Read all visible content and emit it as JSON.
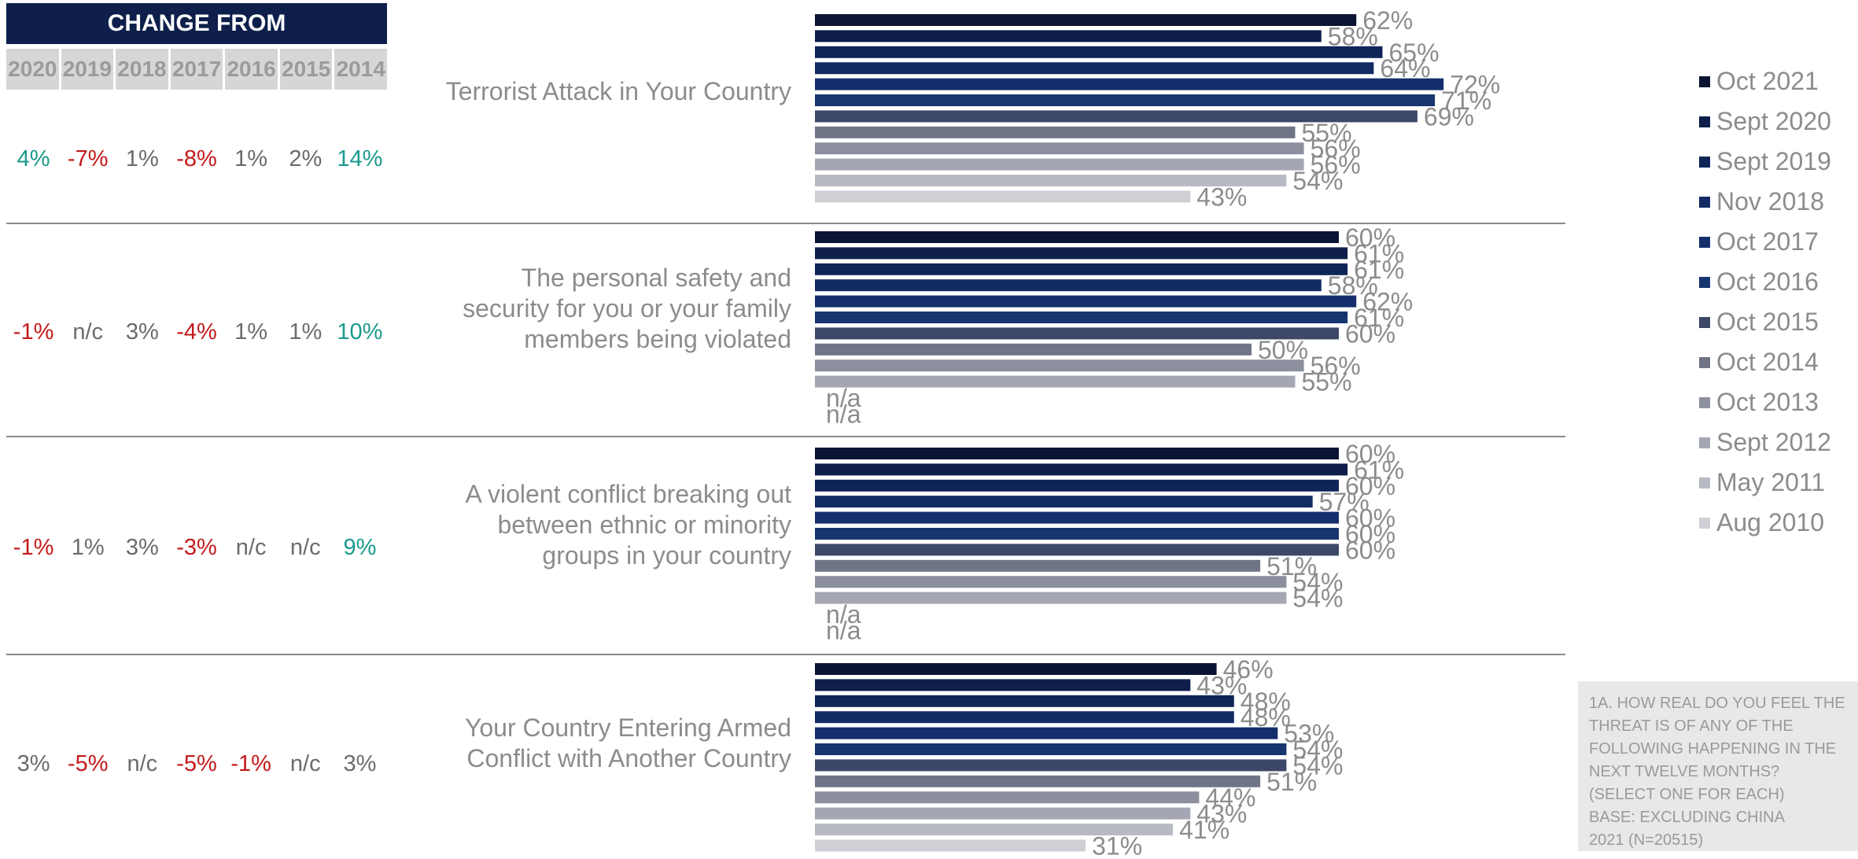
{
  "change_table": {
    "header": "CHANGE FROM",
    "years": [
      "2020",
      "2019",
      "2018",
      "2017",
      "2016",
      "2015",
      "2014"
    ],
    "rows": [
      [
        "4%",
        "-7%",
        "1%",
        "-8%",
        "1%",
        "2%",
        "14%"
      ],
      [
        "-1%",
        "n/c",
        "3%",
        "-4%",
        "1%",
        "1%",
        "10%"
      ],
      [
        "-1%",
        "1%",
        "3%",
        "-3%",
        "n/c",
        "n/c",
        "9%"
      ],
      [
        "3%",
        "-5%",
        "n/c",
        "-5%",
        "-1%",
        "n/c",
        "3%"
      ]
    ]
  },
  "colors": {
    "positive": "#1a9a8c",
    "negative": "#c41a1a",
    "series": [
      "#0b1433",
      "#0d1f4a",
      "#0f2558",
      "#122b63",
      "#142f6c",
      "#17356f",
      "#3d4768",
      "#6f7487",
      "#8c909e",
      "#a4a7b3",
      "#b8bac3",
      "#cfd0d6"
    ]
  },
  "legend": [
    "Oct 2021",
    "Sept 2020",
    "Sept 2019",
    "Nov 2018",
    "Oct 2017",
    "Oct 2016",
    "Oct 2015",
    "Oct 2014",
    "Oct 2013",
    "Sept 2012",
    "May 2011",
    "Aug 2010"
  ],
  "chart_data": {
    "type": "bar",
    "orientation": "horizontal",
    "categories": [
      "Terrorist Attack in Your Country",
      "The personal safety and security for you or your family members being violated",
      "A violent conflict breaking out between ethnic or minority groups in your country",
      "Your Country Entering Armed Conflict with Another Country"
    ],
    "series": [
      {
        "name": "Oct 2021",
        "values": [
          62,
          60,
          60,
          46
        ],
        "labels": [
          "62%",
          "60%",
          "60%",
          "46%"
        ]
      },
      {
        "name": "Sept 2020",
        "values": [
          58,
          61,
          61,
          43
        ],
        "labels": [
          "58%",
          "61%",
          "61%",
          "43%"
        ]
      },
      {
        "name": "Sept 2019",
        "values": [
          65,
          61,
          60,
          48
        ],
        "labels": [
          "65%",
          "61%",
          "60%",
          "48%"
        ]
      },
      {
        "name": "Nov 2018",
        "values": [
          64,
          58,
          57,
          48
        ],
        "labels": [
          "64%",
          "58%",
          "57%",
          "48%"
        ]
      },
      {
        "name": "Oct 2017",
        "values": [
          72,
          62,
          60,
          53
        ],
        "labels": [
          "72%",
          "62%",
          "60%",
          "53%"
        ]
      },
      {
        "name": "Oct 2016",
        "values": [
          71,
          61,
          60,
          54
        ],
        "labels": [
          "71%",
          "61%",
          "60%",
          "54%"
        ]
      },
      {
        "name": "Oct 2015",
        "values": [
          69,
          60,
          60,
          54
        ],
        "labels": [
          "69%",
          "60%",
          "60%",
          "54%"
        ]
      },
      {
        "name": "Oct 2014",
        "values": [
          55,
          50,
          51,
          51
        ],
        "labels": [
          "55%",
          "50%",
          "51%",
          "51%"
        ]
      },
      {
        "name": "Oct 2013",
        "values": [
          56,
          56,
          54,
          44
        ],
        "labels": [
          "56%",
          "56%",
          "54%",
          "44%"
        ]
      },
      {
        "name": "Sept 2012",
        "values": [
          56,
          55,
          54,
          43
        ],
        "labels": [
          "56%",
          "55%",
          "54%",
          "43%"
        ]
      },
      {
        "name": "May 2011",
        "values": [
          54,
          null,
          null,
          41
        ],
        "labels": [
          "54%",
          "n/a",
          "n/a",
          "41%"
        ]
      },
      {
        "name": "Aug 2010",
        "values": [
          43,
          null,
          null,
          31
        ],
        "labels": [
          "43%",
          "n/a",
          "n/a",
          "31%"
        ]
      }
    ],
    "xlim": [
      0,
      100
    ]
  },
  "question": [
    "1A. HOW REAL DO YOU FEEL THE",
    "THREAT IS OF ANY OF THE",
    "FOLLOWING HAPPENING IN THE",
    "NEXT TWELVE MONTHS?",
    "(SELECT ONE FOR EACH)",
    "BASE: EXCLUDING CHINA",
    "2021 (N=20515)"
  ]
}
